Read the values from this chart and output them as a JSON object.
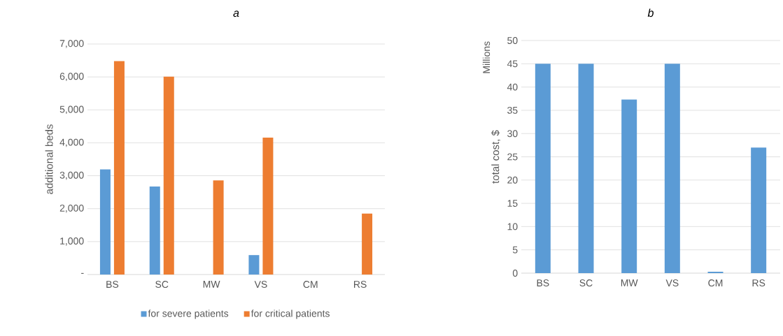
{
  "chart_data": [
    {
      "type": "bar",
      "title": "a",
      "ylabel": "additional beds",
      "categories": [
        "BS",
        "SC",
        "MW",
        "VS",
        "CM",
        "RS"
      ],
      "series": [
        {
          "name": "for severe patients",
          "color": "#5b9bd5",
          "values": [
            3190,
            2670,
            0,
            590,
            0,
            0
          ]
        },
        {
          "name": "for critical patients",
          "color": "#ed7d31",
          "values": [
            6480,
            6010,
            2860,
            4160,
            0,
            1850
          ]
        }
      ],
      "ylim": [
        0,
        7000
      ],
      "yticks": [
        {
          "value": 0,
          "label": "-"
        },
        {
          "value": 1000,
          "label": "1,000"
        },
        {
          "value": 2000,
          "label": "2,000"
        },
        {
          "value": 3000,
          "label": "3,000"
        },
        {
          "value": 4000,
          "label": "4,000"
        },
        {
          "value": 5000,
          "label": "5,000"
        },
        {
          "value": 6000,
          "label": "6,000"
        },
        {
          "value": 7000,
          "label": "7,000"
        }
      ],
      "grid": "y",
      "legend": "bottom"
    },
    {
      "type": "bar",
      "title": "b",
      "ylabel": "total cost, $",
      "annotations": [
        "Millions"
      ],
      "categories": [
        "BS",
        "SC",
        "MW",
        "VS",
        "CM",
        "RS"
      ],
      "series": [
        {
          "color": "#5b9bd5",
          "values": [
            45,
            45,
            37.3,
            45,
            0.3,
            27
          ]
        }
      ],
      "ylim": [
        0,
        50
      ],
      "yticks": [
        0,
        5,
        10,
        15,
        20,
        25,
        30,
        35,
        40,
        45,
        50
      ],
      "grid": "y"
    }
  ]
}
